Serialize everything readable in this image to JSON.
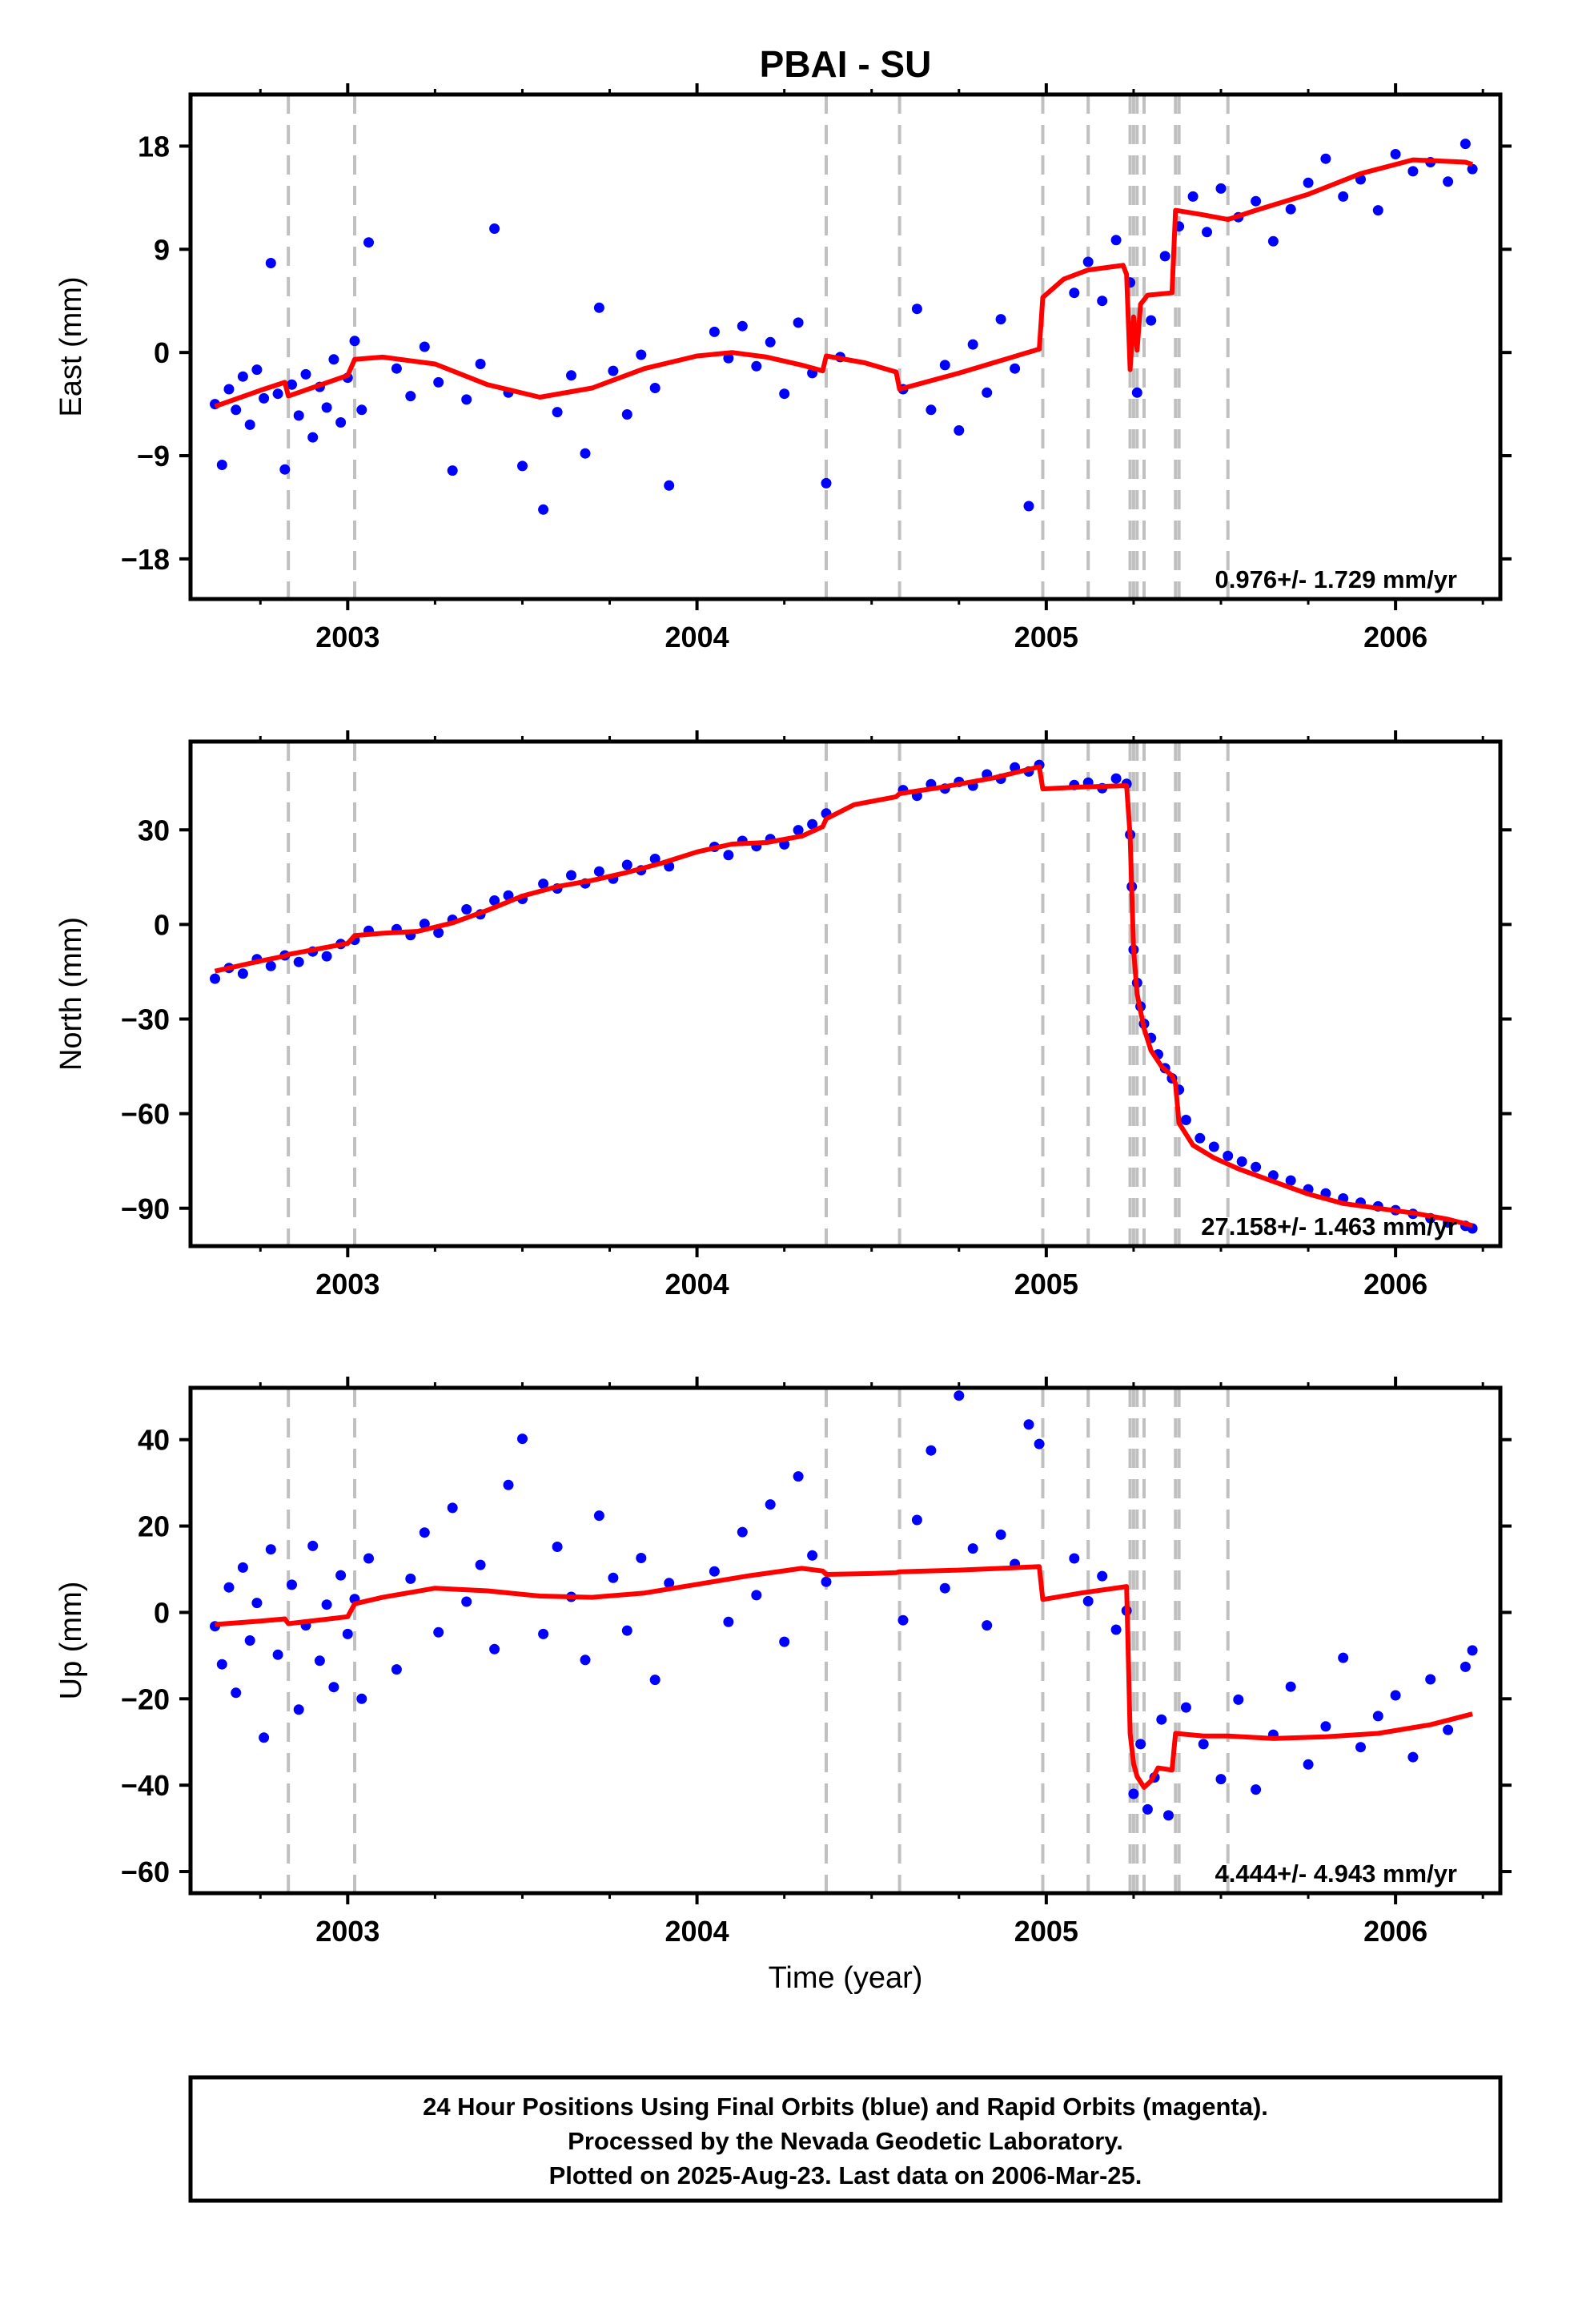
{
  "title": "PBAI - SU",
  "xlabel": "Time (year)",
  "footer": {
    "line1": "24 Hour Positions Using Final Orbits (blue) and Rapid Orbits (magenta).",
    "line2": "Processed by the Nevada Geodetic Laboratory.",
    "line3": "Plotted on 2025-Aug-23. Last data on 2006-Mar-25."
  },
  "colors": {
    "points": "#0000ff",
    "model": "#ff0000",
    "events": "#c0c0c0",
    "frame": "#000000"
  },
  "chart_data": [
    {
      "type": "scatter",
      "component": "east",
      "ylabel": "East (mm)",
      "rate_text": "0.976+/- 1.729 mm/yr",
      "xlim": [
        2002.55,
        2006.3
      ],
      "ylim": [
        -21.5,
        22.5
      ],
      "yticks": [
        -18,
        -9,
        0,
        9,
        18
      ],
      "ytick_labels": [
        "−18",
        "−9",
        "0",
        "9",
        "18"
      ],
      "xticks": [
        2003,
        2004,
        2005,
        2006
      ],
      "xtick_labels": [
        "2003",
        "2004",
        "2005",
        "2006"
      ],
      "event_lines": [
        2002.83,
        2003.02,
        2004.37,
        2004.58,
        2004.99,
        2005.12,
        2005.24,
        2005.25,
        2005.26,
        2005.28,
        2005.37,
        2005.38,
        2005.52
      ],
      "series": [
        {
          "kind": "points",
          "x": [
            2002.62,
            2002.64,
            2002.66,
            2002.68,
            2002.7,
            2002.72,
            2002.74,
            2002.76,
            2002.78,
            2002.8,
            2002.82,
            2002.84,
            2002.86,
            2002.88,
            2002.9,
            2002.92,
            2002.94,
            2002.96,
            2002.98,
            2003.0,
            2003.02,
            2003.04,
            2003.06,
            2003.14,
            2003.18,
            2003.22,
            2003.26,
            2003.3,
            2003.34,
            2003.38,
            2003.42,
            2003.46,
            2003.5,
            2003.56,
            2003.6,
            2003.64,
            2003.68,
            2003.72,
            2003.76,
            2003.8,
            2003.84,
            2003.88,
            2003.92,
            2004.05,
            2004.09,
            2004.13,
            2004.17,
            2004.21,
            2004.25,
            2004.29,
            2004.33,
            2004.37,
            2004.41,
            2004.59,
            2004.63,
            2004.67,
            2004.71,
            2004.75,
            2004.79,
            2004.83,
            2004.87,
            2004.91,
            2004.95,
            2005.08,
            2005.12,
            2005.16,
            2005.2,
            2005.24,
            2005.26,
            2005.3,
            2005.34,
            2005.38,
            2005.42,
            2005.46,
            2005.5,
            2005.55,
            2005.6,
            2005.65,
            2005.7,
            2005.75,
            2005.8,
            2005.85,
            2005.9,
            2005.95,
            2006.0,
            2006.05,
            2006.1,
            2006.15,
            2006.2,
            2006.22
          ],
          "y": [
            -4.5,
            -9.8,
            -3.2,
            -5.0,
            -2.1,
            -6.3,
            -1.5,
            -4.0,
            7.8,
            -3.6,
            -10.2,
            -2.8,
            -5.5,
            -1.9,
            -7.4,
            -3.0,
            -4.8,
            -0.6,
            -6.1,
            -2.2,
            1.0,
            -5.0,
            9.6,
            -1.4,
            -3.8,
            0.5,
            -2.6,
            -10.3,
            -4.1,
            -1.0,
            10.8,
            -3.5,
            -9.9,
            -13.7,
            -5.2,
            -2.0,
            -8.8,
            3.9,
            -1.6,
            -5.4,
            -0.2,
            -3.1,
            -11.6,
            1.8,
            -0.5,
            2.3,
            -1.2,
            0.9,
            -3.6,
            2.6,
            -1.8,
            -11.4,
            -0.4,
            -3.2,
            3.8,
            -5.0,
            -1.1,
            -6.8,
            0.7,
            -3.5,
            2.9,
            -1.4,
            -13.4,
            5.2,
            7.9,
            4.5,
            9.8,
            6.1,
            -3.5,
            2.8,
            8.4,
            11.0,
            13.6,
            10.5,
            14.3,
            11.8,
            13.2,
            9.7,
            12.5,
            14.8,
            16.9,
            13.6,
            15.1,
            12.4,
            17.3,
            15.8,
            16.6,
            14.9,
            18.2,
            16.0
          ]
        },
        {
          "kind": "model",
          "x": [
            2002.62,
            2002.75,
            2002.82,
            2002.83,
            2003.0,
            2003.02,
            2003.1,
            2003.25,
            2003.4,
            2003.55,
            2003.7,
            2003.85,
            2004.0,
            2004.1,
            2004.2,
            2004.3,
            2004.36,
            2004.37,
            2004.48,
            2004.57,
            2004.58,
            2004.75,
            2004.98,
            2004.99,
            2005.05,
            2005.12,
            2005.22,
            2005.23,
            2005.24,
            2005.25,
            2005.26,
            2005.27,
            2005.29,
            2005.36,
            2005.37,
            2005.45,
            2005.52,
            2005.6,
            2005.75,
            2005.9,
            2006.05,
            2006.2,
            2006.22
          ],
          "y": [
            -4.7,
            -3.3,
            -2.6,
            -3.8,
            -2.0,
            -0.6,
            -0.4,
            -1.0,
            -2.8,
            -3.9,
            -3.1,
            -1.4,
            -0.3,
            0.0,
            -0.4,
            -1.1,
            -1.6,
            -0.3,
            -0.9,
            -1.7,
            -3.2,
            -1.8,
            0.3,
            4.8,
            6.4,
            7.2,
            7.6,
            6.8,
            -1.5,
            3.1,
            0.2,
            4.2,
            5.0,
            5.2,
            12.4,
            12.0,
            11.6,
            12.4,
            13.8,
            15.6,
            16.8,
            16.6,
            16.4
          ]
        }
      ]
    },
    {
      "type": "scatter",
      "component": "north",
      "ylabel": "North (mm)",
      "rate_text": "27.158+/- 1.463 mm/yr",
      "xlim": [
        2002.55,
        2006.3
      ],
      "ylim": [
        -102,
        58
      ],
      "yticks": [
        -90,
        -60,
        -30,
        0,
        30
      ],
      "ytick_labels": [
        "−90",
        "−60",
        "−30",
        "0",
        "30"
      ],
      "xticks": [
        2003,
        2004,
        2005,
        2006
      ],
      "xtick_labels": [
        "2003",
        "2004",
        "2005",
        "2006"
      ],
      "event_lines": [
        2002.83,
        2003.02,
        2004.37,
        2004.58,
        2004.99,
        2005.12,
        2005.24,
        2005.25,
        2005.26,
        2005.28,
        2005.37,
        2005.38,
        2005.52
      ],
      "series": [
        {
          "kind": "points",
          "x": [
            2002.62,
            2002.66,
            2002.7,
            2002.74,
            2002.78,
            2002.82,
            2002.86,
            2002.9,
            2002.94,
            2002.98,
            2003.02,
            2003.06,
            2003.14,
            2003.18,
            2003.22,
            2003.26,
            2003.3,
            2003.34,
            2003.38,
            2003.42,
            2003.46,
            2003.5,
            2003.56,
            2003.6,
            2003.64,
            2003.68,
            2003.72,
            2003.76,
            2003.8,
            2003.84,
            2003.88,
            2003.92,
            2004.05,
            2004.09,
            2004.13,
            2004.17,
            2004.21,
            2004.25,
            2004.29,
            2004.33,
            2004.37,
            2004.59,
            2004.63,
            2004.67,
            2004.71,
            2004.75,
            2004.79,
            2004.83,
            2004.87,
            2004.91,
            2004.95,
            2004.98,
            2005.08,
            2005.12,
            2005.16,
            2005.2,
            2005.23,
            2005.24,
            2005.245,
            2005.25,
            2005.26,
            2005.27,
            2005.28,
            2005.3,
            2005.32,
            2005.34,
            2005.36,
            2005.38,
            2005.4,
            2005.44,
            2005.48,
            2005.52,
            2005.56,
            2005.6,
            2005.65,
            2005.7,
            2005.75,
            2005.8,
            2005.85,
            2005.9,
            2005.95,
            2006.0,
            2006.05,
            2006.1,
            2006.15,
            2006.2,
            2006.22
          ],
          "y": [
            -17.2,
            -13.8,
            -15.6,
            -11.0,
            -13.2,
            -9.8,
            -11.9,
            -8.6,
            -10.1,
            -6.2,
            -4.9,
            -2.0,
            -1.5,
            -3.4,
            0.2,
            -2.6,
            1.5,
            4.8,
            3.2,
            7.6,
            9.2,
            8.1,
            12.9,
            11.4,
            15.6,
            13.0,
            16.8,
            14.5,
            18.9,
            17.2,
            20.8,
            18.4,
            24.6,
            22.0,
            26.5,
            24.8,
            27.1,
            25.4,
            29.9,
            31.8,
            35.2,
            42.6,
            40.8,
            44.5,
            43.1,
            45.2,
            44.0,
            47.6,
            46.2,
            49.8,
            48.5,
            50.6,
            44.2,
            45.0,
            43.2,
            46.3,
            44.6,
            28.5,
            12.0,
            -8.0,
            -18.5,
            -26.0,
            -31.5,
            -36.0,
            -41.2,
            -45.6,
            -48.8,
            -52.4,
            -62.0,
            -67.8,
            -70.5,
            -73.4,
            -75.2,
            -76.9,
            -79.6,
            -81.2,
            -84.0,
            -85.3,
            -86.9,
            -88.2,
            -89.4,
            -90.6,
            -91.8,
            -93.2,
            -94.5,
            -95.6,
            -96.4
          ]
        },
        {
          "kind": "model",
          "x": [
            2002.62,
            2002.75,
            2002.82,
            2002.83,
            2003.0,
            2003.02,
            2003.1,
            2003.2,
            2003.3,
            2003.4,
            2003.5,
            2003.6,
            2003.7,
            2003.8,
            2003.9,
            2004.0,
            2004.1,
            2004.2,
            2004.3,
            2004.36,
            2004.37,
            2004.45,
            2004.57,
            2004.58,
            2004.7,
            2004.85,
            2004.98,
            2004.99,
            2005.1,
            2005.23,
            2005.24,
            2005.245,
            2005.25,
            2005.26,
            2005.28,
            2005.3,
            2005.33,
            2005.36,
            2005.37,
            2005.38,
            2005.42,
            2005.48,
            2005.55,
            2005.65,
            2005.75,
            2005.85,
            2005.95,
            2006.05,
            2006.15,
            2006.22
          ],
          "y": [
            -14.8,
            -11.6,
            -10.0,
            -9.5,
            -6.0,
            -3.5,
            -2.8,
            -2.2,
            0.5,
            4.5,
            9.0,
            12.0,
            14.0,
            16.5,
            19.5,
            23.0,
            25.5,
            26.0,
            28.0,
            31.0,
            33.5,
            38.0,
            40.5,
            41.5,
            43.5,
            46.5,
            50.0,
            43.0,
            43.6,
            44.0,
            28.0,
            10.0,
            -8.0,
            -22.0,
            -33.0,
            -40.0,
            -45.0,
            -48.0,
            -50.5,
            -63.0,
            -70.0,
            -74.0,
            -77.5,
            -81.5,
            -85.5,
            -88.5,
            -90.0,
            -91.5,
            -93.5,
            -95.5
          ]
        }
      ]
    },
    {
      "type": "scatter",
      "component": "up",
      "ylabel": "Up (mm)",
      "rate_text": "4.444+/- 4.943 mm/yr",
      "xlim": [
        2002.55,
        2006.3
      ],
      "ylim": [
        -65,
        52
      ],
      "yticks": [
        -60,
        -40,
        -20,
        0,
        20,
        40
      ],
      "ytick_labels": [
        "−60",
        "−40",
        "−20",
        "0",
        "20",
        "40"
      ],
      "xticks": [
        2003,
        2004,
        2005,
        2006
      ],
      "xtick_labels": [
        "2003",
        "2004",
        "2005",
        "2006"
      ],
      "event_lines": [
        2002.83,
        2003.02,
        2004.37,
        2004.58,
        2004.99,
        2005.12,
        2005.24,
        2005.25,
        2005.26,
        2005.28,
        2005.37,
        2005.38,
        2005.52
      ],
      "series": [
        {
          "kind": "points",
          "x": [
            2002.62,
            2002.64,
            2002.66,
            2002.68,
            2002.7,
            2002.72,
            2002.74,
            2002.76,
            2002.78,
            2002.8,
            2002.84,
            2002.86,
            2002.88,
            2002.9,
            2002.92,
            2002.94,
            2002.96,
            2002.98,
            2003.0,
            2003.02,
            2003.04,
            2003.06,
            2003.14,
            2003.18,
            2003.22,
            2003.26,
            2003.3,
            2003.34,
            2003.38,
            2003.42,
            2003.46,
            2003.5,
            2003.56,
            2003.6,
            2003.64,
            2003.68,
            2003.72,
            2003.76,
            2003.8,
            2003.84,
            2003.88,
            2003.92,
            2004.05,
            2004.09,
            2004.13,
            2004.17,
            2004.21,
            2004.25,
            2004.29,
            2004.33,
            2004.37,
            2004.59,
            2004.63,
            2004.67,
            2004.71,
            2004.75,
            2004.79,
            2004.83,
            2004.87,
            2004.91,
            2004.95,
            2004.98,
            2005.08,
            2005.12,
            2005.16,
            2005.2,
            2005.23,
            2005.25,
            2005.27,
            2005.29,
            2005.31,
            2005.33,
            2005.35,
            2005.4,
            2005.45,
            2005.5,
            2005.55,
            2005.6,
            2005.65,
            2005.7,
            2005.75,
            2005.8,
            2005.85,
            2005.9,
            2005.95,
            2006.0,
            2006.05,
            2006.1,
            2006.15,
            2006.2,
            2006.22
          ],
          "y": [
            -3.2,
            -12.0,
            5.8,
            -18.6,
            10.4,
            -6.5,
            2.2,
            -29.0,
            14.6,
            -9.8,
            6.4,
            -22.5,
            -3.0,
            15.4,
            -11.2,
            1.8,
            -17.3,
            8.6,
            -5.0,
            3.1,
            -20.0,
            12.5,
            -13.2,
            7.8,
            18.5,
            -4.6,
            24.2,
            2.5,
            11.0,
            -8.5,
            29.5,
            40.2,
            -5.0,
            15.2,
            3.6,
            -11.0,
            22.4,
            8.0,
            -4.2,
            12.6,
            -15.6,
            6.8,
            9.5,
            -2.2,
            18.6,
            4.0,
            25.0,
            -6.8,
            31.5,
            13.2,
            7.1,
            -1.8,
            21.4,
            37.5,
            5.6,
            50.2,
            14.8,
            -3.0,
            18.0,
            11.2,
            43.5,
            39.0,
            12.5,
            2.6,
            8.4,
            -4.0,
            0.4,
            -42.0,
            -30.5,
            -45.6,
            -38.2,
            -24.8,
            -47.0,
            -22.0,
            -30.5,
            -38.6,
            -20.2,
            -41.0,
            -28.3,
            -17.2,
            -35.2,
            -26.4,
            -10.5,
            -31.2,
            -24.0,
            -19.2,
            -33.5,
            -15.5,
            -27.2,
            -12.6,
            -8.8
          ]
        },
        {
          "kind": "model",
          "x": [
            2002.62,
            2002.75,
            2002.82,
            2002.83,
            2003.0,
            2003.02,
            2003.1,
            2003.25,
            2003.4,
            2003.55,
            2003.7,
            2003.85,
            2004.0,
            2004.15,
            2004.3,
            2004.36,
            2004.37,
            2004.5,
            2004.57,
            2004.58,
            2004.75,
            2004.98,
            2004.99,
            2005.1,
            2005.23,
            2005.24,
            2005.25,
            2005.26,
            2005.28,
            2005.3,
            2005.32,
            2005.36,
            2005.37,
            2005.45,
            2005.52,
            2005.65,
            2005.8,
            2005.95,
            2006.1,
            2006.22
          ],
          "y": [
            -2.8,
            -2.0,
            -1.5,
            -2.6,
            -1.0,
            2.0,
            3.5,
            5.6,
            5.0,
            3.8,
            3.5,
            4.5,
            6.5,
            8.5,
            10.2,
            9.6,
            8.8,
            9.0,
            9.2,
            9.4,
            9.8,
            10.6,
            3.0,
            4.5,
            6.0,
            -28.0,
            -35.0,
            -38.0,
            -40.5,
            -39.0,
            -36.0,
            -36.5,
            -28.0,
            -28.6,
            -28.6,
            -29.2,
            -28.8,
            -28.0,
            -26.0,
            -23.5
          ]
        }
      ]
    }
  ]
}
